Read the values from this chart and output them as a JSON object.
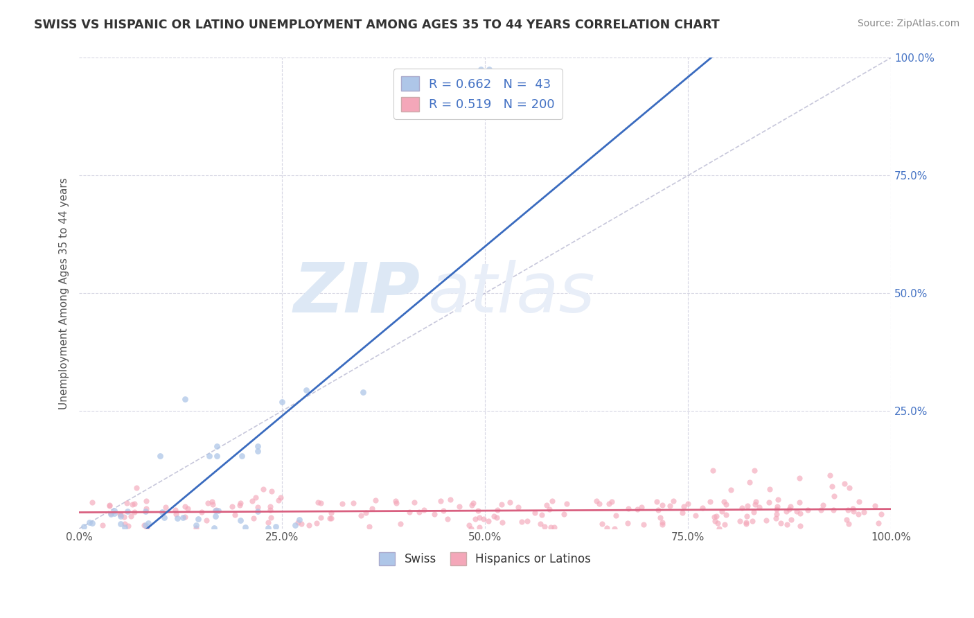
{
  "title": "SWISS VS HISPANIC OR LATINO UNEMPLOYMENT AMONG AGES 35 TO 44 YEARS CORRELATION CHART",
  "source": "Source: ZipAtlas.com",
  "ylabel": "Unemployment Among Ages 35 to 44 years",
  "xlim": [
    0,
    1.0
  ],
  "ylim": [
    0,
    1.0
  ],
  "xtick_labels": [
    "0.0%",
    "25.0%",
    "50.0%",
    "75.0%",
    "100.0%"
  ],
  "xtick_vals": [
    0.0,
    0.25,
    0.5,
    0.75,
    1.0
  ],
  "ytick_labels": [
    "25.0%",
    "50.0%",
    "75.0%",
    "100.0%"
  ],
  "ytick_vals": [
    0.25,
    0.5,
    0.75,
    1.0
  ],
  "swiss_R": 0.662,
  "swiss_N": 43,
  "hispanic_R": 0.519,
  "hispanic_N": 200,
  "swiss_color": "#aec6e8",
  "swiss_line_color": "#3a6bbf",
  "hispanic_color": "#f4a7b9",
  "hispanic_line_color": "#d96080",
  "diagonal_color": "#b0b0cc",
  "background_color": "#ffffff",
  "watermark_text": "ZIPatlas",
  "watermark_color": "#dde8f5",
  "grid_color": "#ccccdd",
  "tick_color": "#4472c4",
  "label_color": "#555555",
  "title_color": "#333333",
  "source_color": "#888888",
  "legend_text_color": "#4472c4"
}
